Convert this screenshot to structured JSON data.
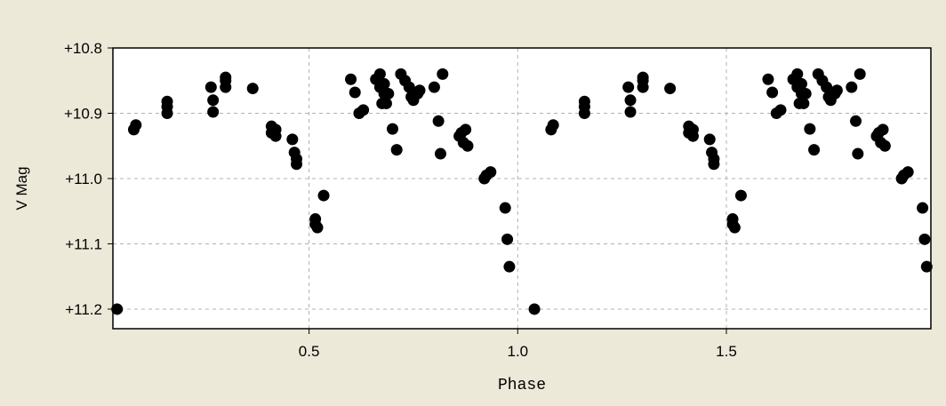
{
  "chart_data": {
    "type": "scatter",
    "title": "",
    "xlabel": "Phase",
    "ylabel": "V Mag",
    "xlim": [
      0.03,
      1.99
    ],
    "ylim": [
      11.23,
      10.8
    ],
    "y_axis_inverted": true,
    "grid": true,
    "x_ticks": [
      0.5,
      1.0,
      1.5
    ],
    "x_tick_labels": [
      "0.5",
      "1.0",
      "1.5"
    ],
    "y_ticks": [
      10.8,
      10.9,
      11.0,
      11.1,
      11.2
    ],
    "y_tick_labels": [
      "+10.8",
      "+10.9",
      "+11.0",
      "+11.1",
      "+11.2"
    ],
    "colors": {
      "background": "#ece9d8",
      "plot_area": "#ffffff",
      "marker": "#000000",
      "grid": "#b0b0b0"
    },
    "series": [
      {
        "x": [
          0.04,
          0.08,
          0.085,
          0.16,
          0.16,
          0.16,
          0.265,
          0.27,
          0.27,
          0.3,
          0.3,
          0.3,
          0.365,
          0.41,
          0.41,
          0.42,
          0.42,
          0.46,
          0.465,
          0.47,
          0.47,
          0.515,
          0.515,
          0.52,
          0.535,
          0.6,
          0.61,
          0.62,
          0.63,
          0.66,
          0.67,
          0.67,
          0.675,
          0.68,
          0.68,
          0.685,
          0.69,
          0.7,
          0.71,
          0.72,
          0.73,
          0.74,
          0.745,
          0.75,
          0.76,
          0.765,
          0.8,
          0.81,
          0.815,
          0.82,
          0.86,
          0.865,
          0.87,
          0.875,
          0.88,
          0.92,
          0.925,
          0.935,
          0.97,
          0.975,
          0.98
        ],
        "y": [
          11.2,
          10.925,
          10.918,
          10.882,
          10.89,
          10.9,
          10.86,
          10.88,
          10.898,
          10.845,
          10.85,
          10.86,
          10.862,
          10.92,
          10.93,
          10.925,
          10.935,
          10.94,
          10.96,
          10.97,
          10.978,
          11.062,
          11.07,
          11.075,
          11.026,
          10.848,
          10.868,
          10.9,
          10.895,
          10.848,
          10.84,
          10.86,
          10.885,
          10.87,
          10.855,
          10.885,
          10.87,
          10.924,
          10.956,
          10.84,
          10.85,
          10.86,
          10.875,
          10.88,
          10.87,
          10.865,
          10.86,
          10.912,
          10.962,
          10.84,
          10.935,
          10.93,
          10.945,
          10.925,
          10.95,
          11.0,
          10.995,
          10.99,
          11.045,
          11.093,
          11.135
        ]
      },
      {
        "x": [
          1.04,
          1.08,
          1.085,
          1.16,
          1.16,
          1.16,
          1.265,
          1.27,
          1.27,
          1.3,
          1.3,
          1.3,
          1.365,
          1.41,
          1.41,
          1.42,
          1.42,
          1.46,
          1.465,
          1.47,
          1.47,
          1.515,
          1.515,
          1.52,
          1.535,
          1.6,
          1.61,
          1.62,
          1.63,
          1.66,
          1.67,
          1.67,
          1.675,
          1.68,
          1.68,
          1.685,
          1.69,
          1.7,
          1.71,
          1.72,
          1.73,
          1.74,
          1.745,
          1.75,
          1.76,
          1.765,
          1.8,
          1.81,
          1.815,
          1.82,
          1.86,
          1.865,
          1.87,
          1.875,
          1.88,
          1.92,
          1.925,
          1.935,
          1.97,
          1.975,
          1.98
        ],
        "y": [
          11.2,
          10.925,
          10.918,
          10.882,
          10.89,
          10.9,
          10.86,
          10.88,
          10.898,
          10.845,
          10.85,
          10.86,
          10.862,
          10.92,
          10.93,
          10.925,
          10.935,
          10.94,
          10.96,
          10.97,
          10.978,
          11.062,
          11.07,
          11.075,
          11.026,
          10.848,
          10.868,
          10.9,
          10.895,
          10.848,
          10.84,
          10.86,
          10.885,
          10.87,
          10.855,
          10.885,
          10.87,
          10.924,
          10.956,
          10.84,
          10.85,
          10.86,
          10.875,
          10.88,
          10.87,
          10.865,
          10.86,
          10.912,
          10.962,
          10.84,
          10.935,
          10.93,
          10.945,
          10.925,
          10.95,
          11.0,
          10.995,
          10.99,
          11.045,
          11.093,
          11.135
        ]
      }
    ]
  }
}
